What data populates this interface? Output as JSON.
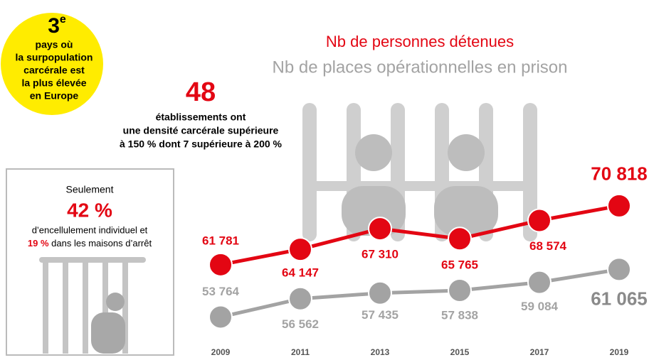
{
  "chart_data": {
    "type": "line",
    "categories": [
      "2009",
      "2011",
      "2013",
      "2015",
      "2017",
      "2019"
    ],
    "series": [
      {
        "name": "Nb de personnes détenues",
        "color": "#e30613",
        "values": [
          61781,
          64147,
          67310,
          65765,
          68574,
          70818
        ],
        "value_labels": [
          "61 781",
          "64 147",
          "67 310",
          "65 765",
          "68 574",
          "70 818"
        ]
      },
      {
        "name": "Nb de places opérationnelles en prison",
        "color": "#a3a3a3",
        "values": [
          53764,
          56562,
          57435,
          57838,
          59084,
          61065
        ],
        "value_labels": [
          "53 764",
          "56 562",
          "57 435",
          "57 838",
          "59 084",
          "61 065"
        ]
      }
    ],
    "ylim": [
      50000,
      72000
    ]
  },
  "badge": {
    "rank": "3",
    "suffix": "e",
    "lines": [
      "pays où",
      "la surpopulation",
      "carcérale est",
      "la plus élevée",
      "en Europe"
    ]
  },
  "callout": {
    "number": "48",
    "lines": [
      "établissements ont",
      "une densité carcérale supérieure",
      "à 150 % dont 7 supérieure à 200 %"
    ]
  },
  "box": {
    "intro": "Seulement",
    "number": "42 %",
    "line1": "d’encellulement individuel et",
    "highlight": "19 %",
    "line2": " dans les maisons d’arrêt"
  }
}
